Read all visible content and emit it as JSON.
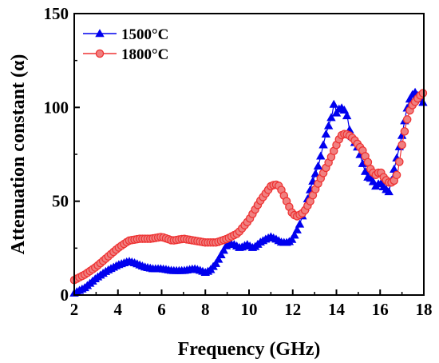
{
  "chart_data": {
    "type": "line",
    "title": "",
    "xlabel": "Frequency (GHz)",
    "ylabel": "Attenuation constant (α)",
    "xlim": [
      2,
      18
    ],
    "ylim": [
      0,
      150
    ],
    "xticks": [
      "2",
      "4",
      "6",
      "8",
      "10",
      "12",
      "14",
      "16",
      "18"
    ],
    "yticks": [
      "0",
      "50",
      "100",
      "150"
    ],
    "grid": false,
    "legend_position": "top-left",
    "series": [
      {
        "name": "1500°C",
        "color": "#0000ee",
        "marker": "triangle",
        "x": [
          2.0,
          2.5,
          3.0,
          3.5,
          4.0,
          4.5,
          4.8,
          5.2,
          5.6,
          6.0,
          6.5,
          7.0,
          7.5,
          7.8,
          8.0,
          8.2,
          8.5,
          8.8,
          9.0,
          9.3,
          9.6,
          9.9,
          10.2,
          10.5,
          10.8,
          11.0,
          11.2,
          11.5,
          11.8,
          12.0,
          12.3,
          12.6,
          12.9,
          13.2,
          13.5,
          13.8,
          13.9,
          14.0,
          14.1,
          14.3,
          14.5,
          14.6,
          14.8,
          15.0,
          15.2,
          15.4,
          15.6,
          15.8,
          16.0,
          16.2,
          16.4,
          16.6,
          16.8,
          17.0,
          17.2,
          17.4,
          17.6,
          17.8,
          18.0
        ],
        "y": [
          1,
          4,
          9,
          13,
          16,
          18,
          17,
          15,
          14,
          14,
          13,
          13,
          14,
          13,
          12,
          13,
          17,
          23,
          27,
          27,
          25,
          27,
          25,
          28,
          30,
          31,
          30,
          28,
          28,
          30,
          37,
          48,
          60,
          70,
          85,
          96,
          103,
          97,
          99,
          100,
          95,
          88,
          82,
          78,
          70,
          63,
          62,
          58,
          60,
          57,
          55,
          65,
          75,
          85,
          98,
          106,
          108,
          105,
          102
        ]
      },
      {
        "name": "1800°C",
        "color": "#ee3333",
        "marker": "circle",
        "x": [
          2.0,
          2.5,
          3.0,
          3.5,
          4.0,
          4.5,
          5.0,
          5.5,
          6.0,
          6.5,
          7.0,
          7.5,
          8.0,
          8.5,
          9.0,
          9.5,
          10.0,
          10.5,
          11.0,
          11.2,
          11.4,
          11.6,
          11.8,
          12.0,
          12.2,
          12.5,
          12.8,
          13.1,
          13.4,
          13.7,
          14.0,
          14.2,
          14.4,
          14.6,
          14.8,
          15.0,
          15.2,
          15.4,
          15.6,
          15.8,
          16.0,
          16.2,
          16.4,
          16.6,
          16.8,
          17.0,
          17.2,
          17.4,
          17.6,
          17.8,
          18.0
        ],
        "y": [
          8,
          11,
          15,
          20,
          25,
          29,
          30,
          30,
          31,
          29,
          30,
          29,
          28,
          28,
          30,
          33,
          40,
          50,
          58,
          59,
          58,
          53,
          48,
          43,
          42,
          44,
          50,
          58,
          65,
          72,
          80,
          85,
          86,
          85,
          83,
          80,
          77,
          72,
          66,
          64,
          66,
          62,
          60,
          60,
          65,
          80,
          92,
          100,
          103,
          106,
          108
        ]
      }
    ]
  }
}
